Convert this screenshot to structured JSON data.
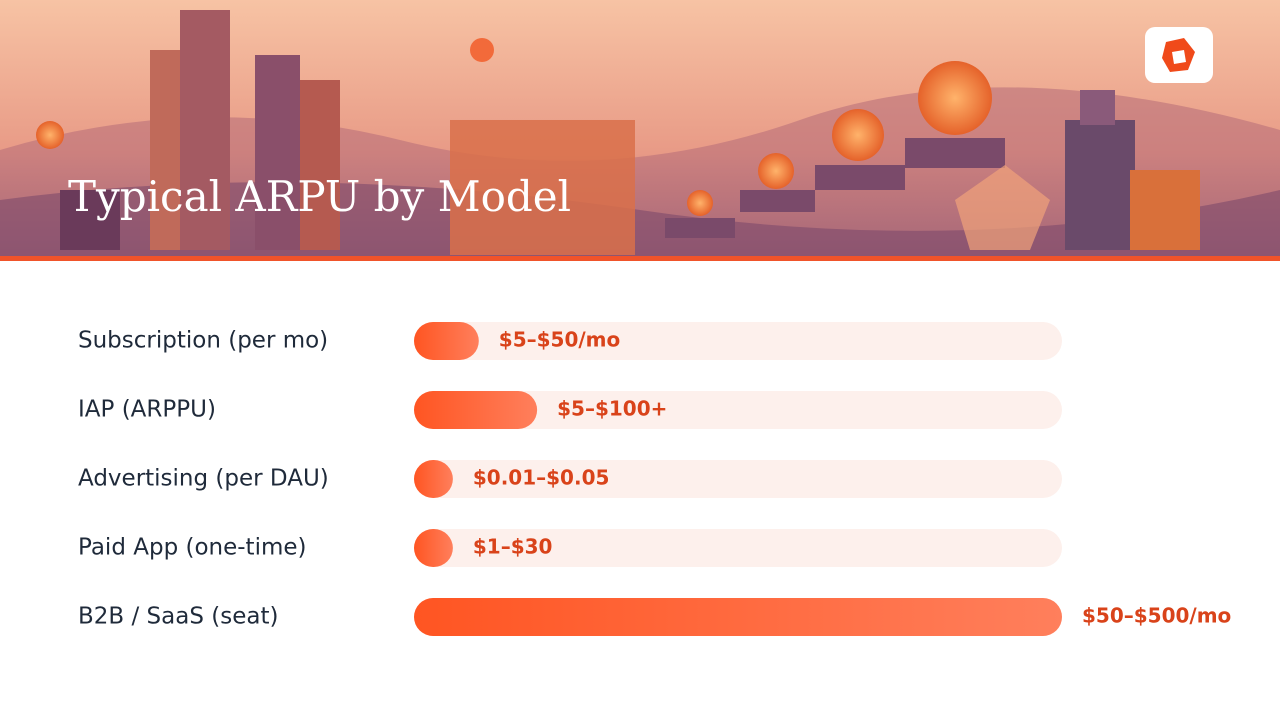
{
  "chart_data": {
    "type": "bar",
    "orientation": "horizontal",
    "title": "Typical ARPU by Model",
    "categories": [
      "Subscription (per mo)",
      "IAP (ARPPU)",
      "Advertising (per DAU)",
      "Paid App (one-time)",
      "B2B / SaaS (seat)"
    ],
    "values": [
      10,
      19,
      6,
      6,
      100
    ],
    "annotations": [
      "$5–$50/mo",
      "$5–$100+",
      "$0.01–$0.05",
      "$1–$30",
      "$50–$500/mo"
    ],
    "xlim": [
      0,
      100
    ],
    "color": "#ff5a2a"
  }
}
